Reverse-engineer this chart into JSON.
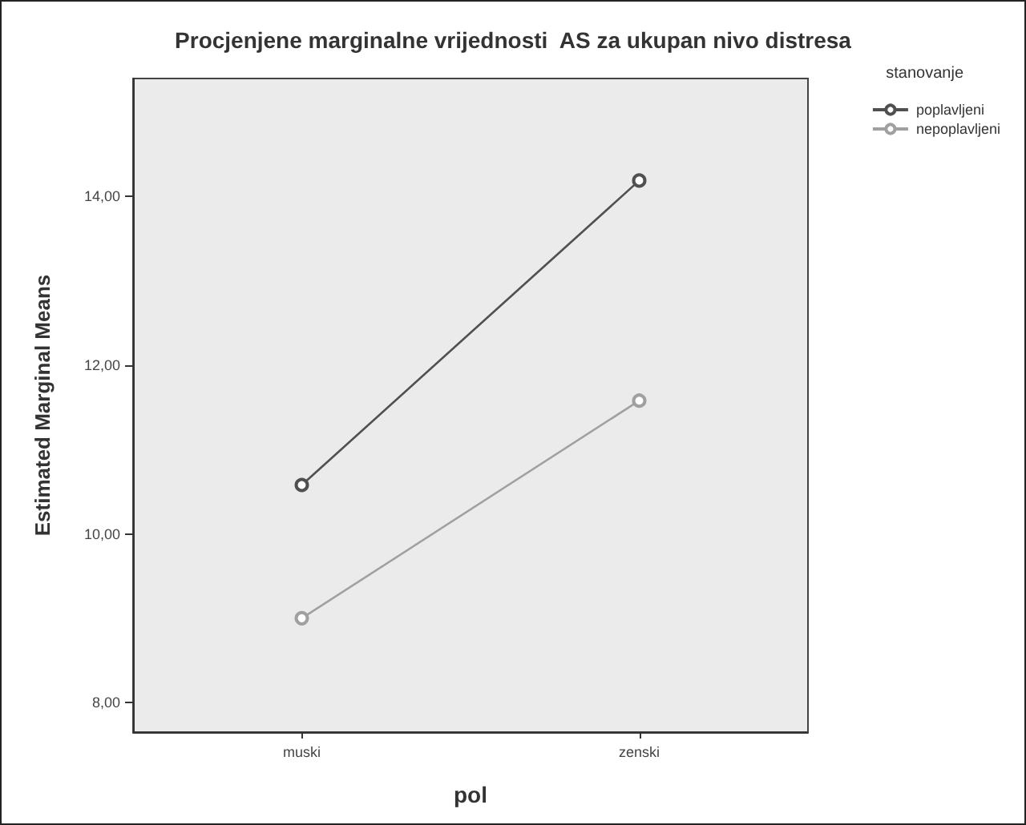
{
  "chart_data": {
    "type": "line",
    "title": "Procjenjene marginalne vrijednosti  AS za ukupan nivo distresa",
    "xlabel": "pol",
    "ylabel": "Estimated Marginal Means",
    "legend_title": "stanovanje",
    "categories": [
      "muski",
      "zenski"
    ],
    "series": [
      {
        "name": "poplavljeni",
        "color": "#505050",
        "values": [
          10.58,
          14.19
        ]
      },
      {
        "name": "nepoplavljeni",
        "color": "#a0a0a0",
        "values": [
          9.0,
          11.58
        ]
      }
    ],
    "ylim": [
      7.65,
      15.4
    ],
    "yticks": [
      {
        "value": 8,
        "label": "8,00"
      },
      {
        "value": 10,
        "label": "10,00"
      },
      {
        "value": 12,
        "label": "12,00"
      },
      {
        "value": 14,
        "label": "14,00"
      }
    ],
    "grid": false,
    "legend": "top right",
    "marker": "circle",
    "line_style": "solid"
  }
}
